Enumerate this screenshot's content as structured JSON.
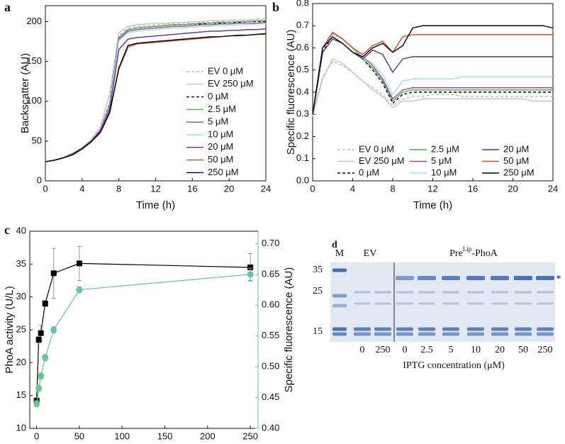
{
  "chart_data": [
    {
      "type": "line",
      "panel": "a",
      "xlabel": "Time (h)",
      "ylabel": "Backscatter (AU)",
      "x": [
        0,
        1,
        2,
        3,
        4,
        5,
        6,
        7,
        8,
        9,
        10,
        11,
        12,
        13,
        14,
        15,
        16,
        17,
        18,
        19,
        20,
        21,
        22,
        23,
        24
      ],
      "xlim": [
        0,
        24
      ],
      "xticks": [
        0,
        4,
        8,
        12,
        16,
        20,
        24
      ],
      "ylim": [
        0,
        220
      ],
      "yticks": [
        0,
        50,
        100,
        150,
        200
      ],
      "legend": "center right",
      "legend_ncol": 1,
      "series": [
        {
          "name": "EV 0 μM",
          "color": "#bbbbbb",
          "dashed": true,
          "values": [
            24,
            26,
            29,
            34,
            41,
            50,
            65,
            100,
            183,
            192,
            194,
            195,
            196,
            197,
            197,
            198,
            198,
            199,
            199,
            200,
            200,
            200,
            201,
            201,
            201
          ]
        },
        {
          "name": "EV 250 μM",
          "color": "#c4c4c4",
          "dashed": false,
          "values": [
            24,
            26,
            30,
            35,
            42,
            52,
            68,
            110,
            186,
            194,
            196,
            197,
            198,
            198,
            199,
            199,
            200,
            200,
            201,
            201,
            202,
            202,
            202,
            203,
            203
          ]
        },
        {
          "name": "0 μM",
          "color": "#000000",
          "dashed": true,
          "values": [
            24,
            26,
            29,
            34,
            41,
            50,
            64,
            96,
            180,
            190,
            192,
            193,
            194,
            195,
            196,
            196,
            197,
            197,
            198,
            198,
            199,
            199,
            200,
            200,
            200
          ]
        },
        {
          "name": "2.5 μM",
          "color": "#3cb93c",
          "dashed": false,
          "values": [
            24,
            26,
            29,
            34,
            41,
            50,
            64,
            96,
            180,
            190,
            192,
            193,
            194,
            195,
            196,
            196,
            197,
            198,
            198,
            199,
            199,
            200,
            200,
            201,
            201
          ]
        },
        {
          "name": "5 μM",
          "color": "#b03ab0",
          "dashed": false,
          "values": [
            24,
            26,
            29,
            34,
            41,
            50,
            64,
            95,
            178,
            188,
            190,
            191,
            192,
            193,
            194,
            194,
            195,
            196,
            196,
            197,
            197,
            198,
            198,
            198,
            199
          ]
        },
        {
          "name": "10 μM",
          "color": "#9fdfe8",
          "dashed": false,
          "values": [
            24,
            26,
            29,
            34,
            41,
            50,
            63,
            93,
            176,
            186,
            188,
            189,
            190,
            191,
            192,
            192,
            193,
            194,
            194,
            195,
            195,
            196,
            196,
            197,
            197
          ]
        },
        {
          "name": "20 μM",
          "color": "#5a2d91",
          "dashed": false,
          "values": [
            24,
            26,
            29,
            34,
            41,
            50,
            63,
            90,
            165,
            178,
            180,
            181,
            182,
            183,
            184,
            185,
            186,
            187,
            188,
            188,
            189,
            189,
            190,
            190,
            191
          ]
        },
        {
          "name": "50 μM",
          "color": "#e0451c",
          "dashed": false,
          "values": [
            24,
            26,
            29,
            33,
            40,
            49,
            61,
            85,
            140,
            168,
            172,
            173,
            174,
            175,
            176,
            177,
            178,
            179,
            180,
            181,
            182,
            182,
            183,
            184,
            184
          ]
        },
        {
          "name": "250 μM",
          "color": "#000000",
          "dashed": false,
          "values": [
            24,
            26,
            29,
            33,
            40,
            49,
            61,
            86,
            142,
            170,
            173,
            174,
            175,
            176,
            177,
            178,
            179,
            180,
            181,
            181,
            182,
            183,
            183,
            184,
            185
          ]
        }
      ]
    },
    {
      "type": "line",
      "panel": "b",
      "xlabel": "Time (h)",
      "ylabel": "Specific fluorescence (AU)",
      "x": [
        0,
        1,
        2,
        3,
        4,
        5,
        6,
        7,
        8,
        9,
        10,
        11,
        12,
        13,
        14,
        15,
        16,
        17,
        18,
        19,
        20,
        21,
        22,
        23,
        24
      ],
      "xlim": [
        0,
        24
      ],
      "xticks": [
        0,
        4,
        8,
        12,
        16,
        20,
        24
      ],
      "ylim": [
        0,
        0.8
      ],
      "yticks": [
        {
          "value": 0,
          "label": "0.0"
        },
        0.1,
        0.2,
        0.3,
        0.4,
        0.5,
        0.6,
        0.7,
        0.8
      ],
      "legend": "lower center",
      "legend_ncol": 3,
      "series": [
        {
          "name": "EV 0 μM",
          "color": "#bbbbbb",
          "dashed": true,
          "values": [
            0.3,
            0.47,
            0.54,
            0.52,
            0.49,
            0.45,
            0.42,
            0.39,
            0.34,
            0.37,
            0.38,
            0.38,
            0.39,
            0.39,
            0.39,
            0.38,
            0.38,
            0.38,
            0.38,
            0.38,
            0.38,
            0.38,
            0.38,
            0.38,
            0.38
          ]
        },
        {
          "name": "EV 250 μM",
          "color": "#c4c4c4",
          "dashed": false,
          "values": [
            0.29,
            0.46,
            0.55,
            0.53,
            0.49,
            0.45,
            0.41,
            0.38,
            0.33,
            0.36,
            0.36,
            0.37,
            0.37,
            0.37,
            0.37,
            0.37,
            0.37,
            0.37,
            0.37,
            0.37,
            0.37,
            0.37,
            0.36,
            0.36,
            0.36
          ]
        },
        {
          "name": "0 μM",
          "color": "#000000",
          "dashed": true,
          "values": [
            0.29,
            0.58,
            0.66,
            0.64,
            0.6,
            0.55,
            0.5,
            0.44,
            0.35,
            0.39,
            0.4,
            0.4,
            0.4,
            0.4,
            0.4,
            0.4,
            0.4,
            0.4,
            0.4,
            0.4,
            0.4,
            0.4,
            0.4,
            0.4,
            0.4
          ]
        },
        {
          "name": "2.5 μM",
          "color": "#3cb93c",
          "dashed": false,
          "values": [
            0.29,
            0.6,
            0.67,
            0.64,
            0.6,
            0.55,
            0.51,
            0.45,
            0.36,
            0.4,
            0.41,
            0.41,
            0.41,
            0.41,
            0.41,
            0.41,
            0.41,
            0.41,
            0.41,
            0.41,
            0.41,
            0.41,
            0.41,
            0.41,
            0.41
          ]
        },
        {
          "name": "5 μM",
          "color": "#b03ab0",
          "dashed": false,
          "values": [
            0.29,
            0.6,
            0.67,
            0.64,
            0.6,
            0.56,
            0.52,
            0.46,
            0.37,
            0.41,
            0.42,
            0.42,
            0.42,
            0.42,
            0.42,
            0.42,
            0.42,
            0.42,
            0.42,
            0.42,
            0.42,
            0.42,
            0.42,
            0.42,
            0.42
          ]
        },
        {
          "name": "10 μM",
          "color": "#9fdfe8",
          "dashed": false,
          "values": [
            0.29,
            0.6,
            0.66,
            0.64,
            0.6,
            0.56,
            0.53,
            0.48,
            0.39,
            0.45,
            0.46,
            0.46,
            0.46,
            0.46,
            0.46,
            0.47,
            0.47,
            0.47,
            0.47,
            0.47,
            0.47,
            0.47,
            0.47,
            0.47,
            0.47
          ]
        },
        {
          "name": "20 μM",
          "color": "#5a2d91",
          "dashed": false,
          "values": [
            0.3,
            0.58,
            0.64,
            0.62,
            0.58,
            0.55,
            0.59,
            0.57,
            0.49,
            0.55,
            0.56,
            0.56,
            0.56,
            0.56,
            0.56,
            0.56,
            0.56,
            0.56,
            0.56,
            0.56,
            0.56,
            0.56,
            0.56,
            0.56,
            0.56
          ]
        },
        {
          "name": "50 μM",
          "color": "#e0451c",
          "dashed": false,
          "values": [
            0.3,
            0.6,
            0.67,
            0.64,
            0.6,
            0.57,
            0.61,
            0.63,
            0.58,
            0.65,
            0.66,
            0.66,
            0.66,
            0.66,
            0.66,
            0.66,
            0.66,
            0.66,
            0.66,
            0.66,
            0.66,
            0.66,
            0.66,
            0.66,
            0.66
          ]
        },
        {
          "name": "250 μM",
          "color": "#000000",
          "dashed": false,
          "values": [
            0.3,
            0.6,
            0.65,
            0.62,
            0.58,
            0.56,
            0.6,
            0.62,
            0.58,
            0.61,
            0.69,
            0.7,
            0.7,
            0.7,
            0.7,
            0.7,
            0.7,
            0.7,
            0.7,
            0.7,
            0.7,
            0.7,
            0.7,
            0.7,
            0.69
          ]
        }
      ]
    },
    {
      "type": "line",
      "panel": "c",
      "xlabel": "IPTG concentration (μM)",
      "ylabel": "PhoA activity (U/L)",
      "y2label": "Specific fluorescence (AU)",
      "y2color": "#5ecb8e",
      "x": [
        0,
        2.5,
        5,
        10,
        20,
        50,
        250
      ],
      "xlim": [
        -8,
        259
      ],
      "xticks": [
        0,
        50,
        100,
        150,
        200,
        250
      ],
      "ylim": [
        10,
        40
      ],
      "yticks": [
        10,
        15,
        20,
        25,
        30,
        35,
        40
      ],
      "y2lim": [
        0.4,
        0.72
      ],
      "y2ticks": [
        {
          "value": 0.4,
          "label": "0.40"
        },
        0.45,
        {
          "value": 0.5,
          "label": "0.50"
        },
        0.55,
        {
          "value": 0.6,
          "label": "0.60"
        },
        0.65,
        {
          "value": 0.7,
          "label": "0.70"
        }
      ],
      "series": [
        {
          "color": "#000000",
          "marker": "square",
          "values": [
            14.2,
            23.5,
            24.5,
            29,
            33.6,
            35.1,
            34.5
          ],
          "errors": [
            0.5,
            0.5,
            1.2,
            0.5,
            3.8,
            2.6,
            2.1
          ]
        },
        {
          "color": "#5ecb8e",
          "marker": "circle",
          "axis": "y2",
          "values": [
            0.44,
            0.465,
            0.485,
            0.515,
            0.56,
            0.625,
            0.65
          ],
          "errors": [
            0.005,
            0.005,
            0.005,
            0.005,
            0.005,
            0.005,
            0.01
          ]
        }
      ]
    }
  ],
  "gel": {
    "panel": "d",
    "marker_lane": "M",
    "ev_label": "EV",
    "construct": {
      "main": "Pre",
      "sup": "Lip",
      "tail": "-PhoA"
    },
    "marker_sizes": [
      "35",
      "25",
      "15"
    ],
    "lanes": [
      "0",
      "250",
      "0",
      "2.5",
      "5",
      "10",
      "20",
      "50",
      "250"
    ],
    "band_mark": "*",
    "xlabel": "IPTG concentration (μM)"
  }
}
